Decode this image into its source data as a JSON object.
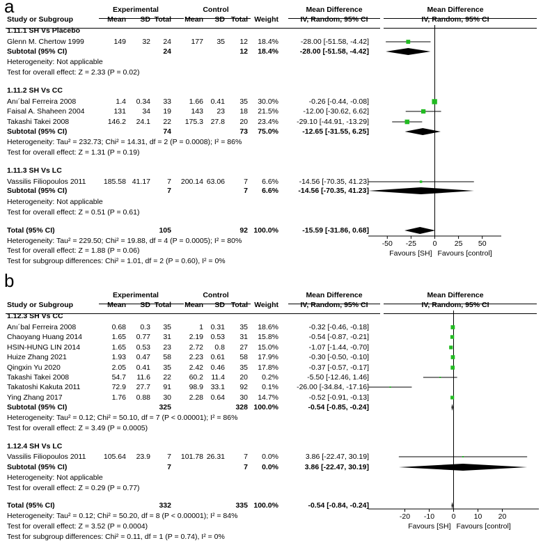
{
  "chart_data": [
    {
      "type": "forest",
      "panel": "a",
      "headers": {
        "group_experimental": "Experimental",
        "group_control": "Control",
        "mean_difference": "Mean Difference",
        "study": "Study or Subgroup",
        "mean": "Mean",
        "sd": "SD",
        "total": "Total",
        "weight": "Weight",
        "method": "IV, Random, 95% CI"
      },
      "subgroups": [
        {
          "title": "1.11.1 SH Vs Placebo",
          "studies": [
            {
              "name": "Glenn M. Chertow 1999",
              "e_mean": "149",
              "e_sd": "32",
              "e_total": "24",
              "c_mean": "177",
              "c_sd": "35",
              "c_total": "12",
              "weight": "18.4%",
              "ci_text": "-28.00 [-51.58, -4.42]",
              "md": -28.0,
              "lo": -51.58,
              "hi": -4.42
            }
          ],
          "subtotal": {
            "label": "Subtotal (95% CI)",
            "e_total": "24",
            "c_total": "12",
            "weight": "18.4%",
            "ci_text": "-28.00 [-51.58, -4.42]",
            "md": -28.0,
            "lo": -51.58,
            "hi": -4.42
          },
          "heterogeneity": "Heterogeneity: Not applicable",
          "overall": "Test for overall effect: Z = 2.33 (P = 0.02)"
        },
        {
          "title": "1.11.2 SH Vs CC",
          "studies": [
            {
              "name": "Anı´bal Ferreira 2008",
              "e_mean": "1.4",
              "e_sd": "0.34",
              "e_total": "33",
              "c_mean": "1.66",
              "c_sd": "0.41",
              "c_total": "35",
              "weight": "30.0%",
              "ci_text": "-0.26 [-0.44, -0.08]",
              "md": -0.26,
              "lo": -0.44,
              "hi": -0.08
            },
            {
              "name": "Faisal A. Shaheen 2004",
              "e_mean": "131",
              "e_sd": "34",
              "e_total": "19",
              "c_mean": "143",
              "c_sd": "23",
              "c_total": "18",
              "weight": "21.5%",
              "ci_text": "-12.00 [-30.62, 6.62]",
              "md": -12.0,
              "lo": -30.62,
              "hi": 6.62
            },
            {
              "name": "Takashi Takei 2008",
              "e_mean": "146.2",
              "e_sd": "24.1",
              "e_total": "22",
              "c_mean": "175.3",
              "c_sd": "27.8",
              "c_total": "20",
              "weight": "23.4%",
              "ci_text": "-29.10 [-44.91, -13.29]",
              "md": -29.1,
              "lo": -44.91,
              "hi": -13.29
            }
          ],
          "subtotal": {
            "label": "Subtotal (95% CI)",
            "e_total": "74",
            "c_total": "73",
            "weight": "75.0%",
            "ci_text": "-12.65 [-31.55, 6.25]",
            "md": -12.65,
            "lo": -31.55,
            "hi": 6.25
          },
          "heterogeneity": "Heterogeneity: Tau² = 232.73; Chi² = 14.31, df = 2 (P = 0.0008); I² = 86%",
          "overall": "Test for overall effect: Z = 1.31 (P = 0.19)"
        },
        {
          "title": "1.11.3 SH Vs LC",
          "studies": [
            {
              "name": "Vassilis Filiopoulos 2011",
              "e_mean": "185.58",
              "e_sd": "41.17",
              "e_total": "7",
              "c_mean": "200.14",
              "c_sd": "63.06",
              "c_total": "7",
              "weight": "6.6%",
              "ci_text": "-14.56 [-70.35, 41.23]",
              "md": -14.56,
              "lo": -70.35,
              "hi": 41.23
            }
          ],
          "subtotal": {
            "label": "Subtotal (95% CI)",
            "e_total": "7",
            "c_total": "7",
            "weight": "6.6%",
            "ci_text": "-14.56 [-70.35, 41.23]",
            "md": -14.56,
            "lo": -70.35,
            "hi": 41.23
          },
          "heterogeneity": "Heterogeneity: Not applicable",
          "overall": "Test for overall effect: Z = 0.51 (P = 0.61)"
        }
      ],
      "total": {
        "label": "Total (95% CI)",
        "e_total": "105",
        "c_total": "92",
        "weight": "100.0%",
        "ci_text": "-15.59 [-31.86, 0.68]",
        "md": -15.59,
        "lo": -31.86,
        "hi": 0.68
      },
      "total_heterogeneity": "Heterogeneity: Tau² = 229.50; Chi² = 19.88, df = 4 (P = 0.0005); I² = 80%",
      "total_overall": "Test for overall effect: Z = 1.88 (P = 0.06)",
      "subgroup_diff": "Test for subgroup differences: Chi² = 1.01, df = 2 (P = 0.60), I² = 0%",
      "xlim": [
        -70,
        70
      ],
      "ticks": [
        -50,
        -25,
        0,
        25,
        50
      ],
      "tick_labels": [
        "-50",
        "-25",
        "0",
        "25",
        "50"
      ],
      "favours_left": "Favours [SH]",
      "favours_right": "Favours [control]"
    },
    {
      "type": "forest",
      "panel": "b",
      "headers": {
        "group_experimental": "Experimental",
        "group_control": "Control",
        "mean_difference": "Mean Difference",
        "study": "Study or Subgroup",
        "mean": "Mean",
        "sd": "SD",
        "total": "Total",
        "weight": "Weight",
        "method": "IV, Random, 95% CI"
      },
      "subgroups": [
        {
          "title": "1.12.3 SH Vs CC",
          "studies": [
            {
              "name": "Anı´bal Ferreira 2008",
              "e_mean": "0.68",
              "e_sd": "0.3",
              "e_total": "35",
              "c_mean": "1",
              "c_sd": "0.31",
              "c_total": "35",
              "weight": "18.6%",
              "ci_text": "-0.32 [-0.46, -0.18]",
              "md": -0.32,
              "lo": -0.46,
              "hi": -0.18
            },
            {
              "name": "Chaoyang Huang 2014",
              "e_mean": "1.65",
              "e_sd": "0.77",
              "e_total": "31",
              "c_mean": "2.19",
              "c_sd": "0.53",
              "c_total": "31",
              "weight": "15.8%",
              "ci_text": "-0.54 [-0.87, -0.21]",
              "md": -0.54,
              "lo": -0.87,
              "hi": -0.21
            },
            {
              "name": "HSIN-HUNG LIN 2014",
              "e_mean": "1.65",
              "e_sd": "0.53",
              "e_total": "23",
              "c_mean": "2.72",
              "c_sd": "0.8",
              "c_total": "27",
              "weight": "15.0%",
              "ci_text": "-1.07 [-1.44, -0.70]",
              "md": -1.07,
              "lo": -1.44,
              "hi": -0.7
            },
            {
              "name": "Huize Zhang 2021",
              "e_mean": "1.93",
              "e_sd": "0.47",
              "e_total": "58",
              "c_mean": "2.23",
              "c_sd": "0.61",
              "c_total": "58",
              "weight": "17.9%",
              "ci_text": "-0.30 [-0.50, -0.10]",
              "md": -0.3,
              "lo": -0.5,
              "hi": -0.1
            },
            {
              "name": "Qingxin Yu 2020",
              "e_mean": "2.05",
              "e_sd": "0.41",
              "e_total": "35",
              "c_mean": "2.42",
              "c_sd": "0.46",
              "c_total": "35",
              "weight": "17.8%",
              "ci_text": "-0.37 [-0.57, -0.17]",
              "md": -0.37,
              "lo": -0.57,
              "hi": -0.17
            },
            {
              "name": "Takashi Takei 2008",
              "e_mean": "54.7",
              "e_sd": "11.6",
              "e_total": "22",
              "c_mean": "60.2",
              "c_sd": "11.4",
              "c_total": "20",
              "weight": "0.2%",
              "ci_text": "-5.50 [-12.46, 1.46]",
              "md": -5.5,
              "lo": -12.46,
              "hi": 1.46
            },
            {
              "name": "Takatoshi Kakuta 2011",
              "e_mean": "72.9",
              "e_sd": "27.7",
              "e_total": "91",
              "c_mean": "98.9",
              "c_sd": "33.1",
              "c_total": "92",
              "weight": "0.1%",
              "ci_text": "-26.00 [-34.84, -17.16]",
              "md": -26.0,
              "lo": -34.84,
              "hi": -17.16
            },
            {
              "name": "Ying Zhang 2017",
              "e_mean": "1.76",
              "e_sd": "0.88",
              "e_total": "30",
              "c_mean": "2.28",
              "c_sd": "0.64",
              "c_total": "30",
              "weight": "14.7%",
              "ci_text": "-0.52 [-0.91, -0.13]",
              "md": -0.52,
              "lo": -0.91,
              "hi": -0.13
            }
          ],
          "subtotal": {
            "label": "Subtotal (95% CI)",
            "e_total": "325",
            "c_total": "328",
            "weight": "100.0%",
            "ci_text": "-0.54 [-0.85, -0.24]",
            "md": -0.54,
            "lo": -0.85,
            "hi": -0.24
          },
          "heterogeneity": "Heterogeneity: Tau² = 0.12; Chi² = 50.10, df = 7 (P < 0.00001); I² = 86%",
          "overall": "Test for overall effect: Z = 3.49 (P = 0.0005)"
        },
        {
          "title": "1.12.4 SH Vs LC",
          "studies": [
            {
              "name": "Vassilis Filiopoulos 2011",
              "e_mean": "105.64",
              "e_sd": "23.9",
              "e_total": "7",
              "c_mean": "101.78",
              "c_sd": "26.31",
              "c_total": "7",
              "weight": "0.0%",
              "ci_text": "3.86 [-22.47, 30.19]",
              "md": 3.86,
              "lo": -22.47,
              "hi": 30.19
            }
          ],
          "subtotal": {
            "label": "Subtotal (95% CI)",
            "e_total": "7",
            "c_total": "7",
            "weight": "0.0%",
            "ci_text": "3.86 [-22.47, 30.19]",
            "md": 3.86,
            "lo": -22.47,
            "hi": 30.19
          },
          "heterogeneity": "Heterogeneity: Not applicable",
          "overall": "Test for overall effect: Z = 0.29 (P = 0.77)"
        }
      ],
      "total": {
        "label": "Total (95% CI)",
        "e_total": "332",
        "c_total": "335",
        "weight": "100.0%",
        "ci_text": "-0.54 [-0.84, -0.24]",
        "md": -0.54,
        "lo": -0.84,
        "hi": -0.24
      },
      "total_heterogeneity": "Heterogeneity: Tau² = 0.12; Chi² = 50.20, df = 8 (P < 0.00001); I² = 84%",
      "total_overall": "Test for overall effect: Z = 3.52 (P = 0.0004)",
      "subgroup_diff": "Test for subgroup differences: Chi² = 0.11, df = 1 (P = 0.74), I² = 0%",
      "xlim": [
        -35,
        35
      ],
      "ticks": [
        -20,
        -10,
        0,
        10,
        20
      ],
      "tick_labels": [
        "-20",
        "-10",
        "0",
        "10",
        "20"
      ],
      "favours_left": "Favours [SH]",
      "favours_right": "Favours [control]"
    }
  ],
  "colors": {
    "marker": "#22bb22",
    "diamond": "#000000",
    "line": "#000000"
  }
}
